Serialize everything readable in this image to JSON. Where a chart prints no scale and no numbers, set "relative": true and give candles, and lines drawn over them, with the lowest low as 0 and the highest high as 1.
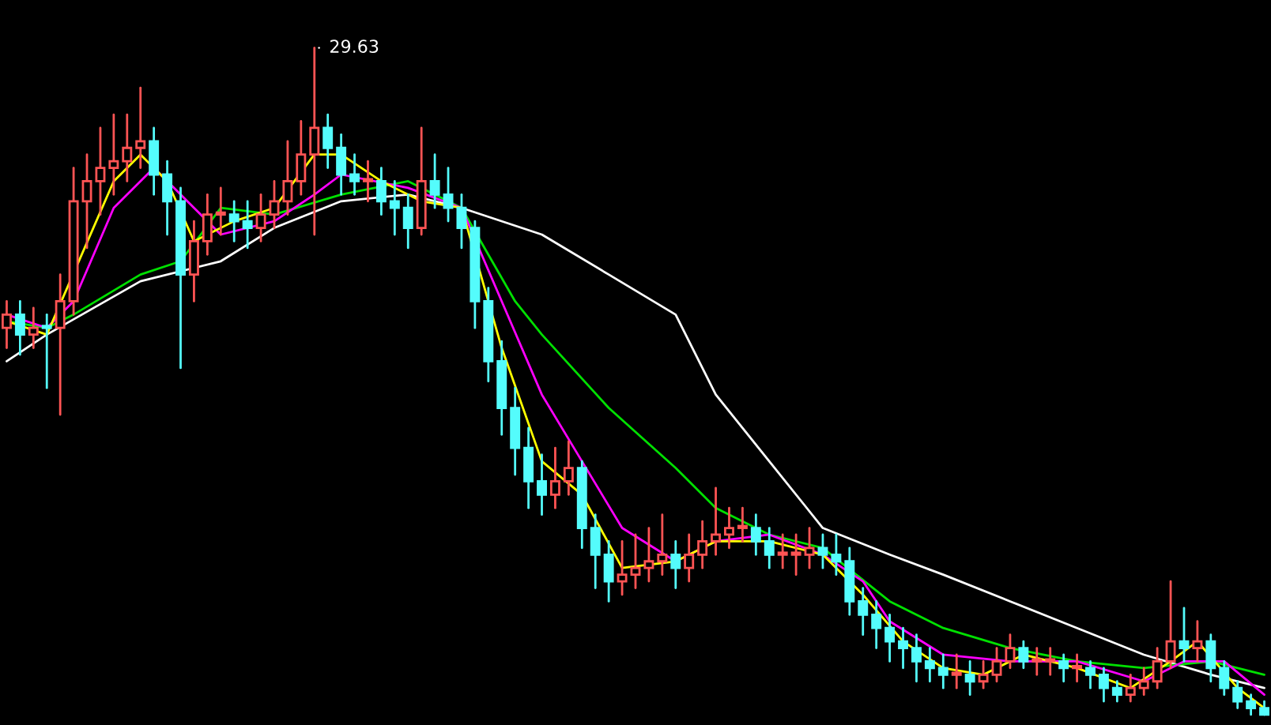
{
  "chart_data": {
    "type": "candlestick",
    "relative": true,
    "annotations": [
      "29.63"
    ],
    "categories": [
      null,
      null,
      null,
      null,
      null,
      null,
      null,
      null,
      null,
      null,
      null,
      null,
      null,
      null,
      null,
      null,
      null,
      null,
      null,
      null,
      null,
      null,
      null,
      null,
      null,
      null,
      null,
      null,
      null,
      null,
      null,
      null,
      null,
      null,
      null,
      null,
      null,
      null,
      null,
      null,
      null,
      null,
      null,
      null,
      null,
      null,
      null,
      null,
      null,
      null,
      null,
      null,
      null,
      null,
      null,
      null,
      null,
      null,
      null,
      null,
      null,
      null,
      null,
      null,
      null,
      null,
      null,
      null,
      null,
      null,
      null,
      null,
      null,
      null,
      null,
      null,
      null,
      null,
      null,
      null,
      null,
      null,
      null,
      null,
      null,
      null,
      null,
      null,
      null,
      null,
      null,
      null,
      null,
      null,
      null
    ],
    "ohlc": [
      [
        0.58,
        0.62,
        0.55,
        0.6
      ],
      [
        0.6,
        0.62,
        0.54,
        0.57
      ],
      [
        0.57,
        0.61,
        0.55,
        0.58
      ],
      [
        0.58,
        0.6,
        0.49,
        0.58
      ],
      [
        0.58,
        0.66,
        0.45,
        0.62
      ],
      [
        0.62,
        0.82,
        0.6,
        0.77
      ],
      [
        0.77,
        0.84,
        0.7,
        0.8
      ],
      [
        0.8,
        0.88,
        0.75,
        0.82
      ],
      [
        0.82,
        0.9,
        0.78,
        0.83
      ],
      [
        0.83,
        0.9,
        0.8,
        0.85
      ],
      [
        0.85,
        0.94,
        0.82,
        0.86
      ],
      [
        0.86,
        0.88,
        0.78,
        0.81
      ],
      [
        0.81,
        0.83,
        0.72,
        0.77
      ],
      [
        0.77,
        0.79,
        0.52,
        0.66
      ],
      [
        0.66,
        0.74,
        0.62,
        0.71
      ],
      [
        0.71,
        0.78,
        0.69,
        0.75
      ],
      [
        0.75,
        0.79,
        0.72,
        0.75
      ],
      [
        0.75,
        0.77,
        0.71,
        0.74
      ],
      [
        0.74,
        0.77,
        0.7,
        0.73
      ],
      [
        0.73,
        0.78,
        0.71,
        0.75
      ],
      [
        0.75,
        0.8,
        0.73,
        0.77
      ],
      [
        0.77,
        0.86,
        0.75,
        0.8
      ],
      [
        0.8,
        0.89,
        0.78,
        0.84
      ],
      [
        0.84,
        1.0,
        0.72,
        0.88
      ],
      [
        0.88,
        0.9,
        0.82,
        0.85
      ],
      [
        0.85,
        0.87,
        0.78,
        0.81
      ],
      [
        0.81,
        0.84,
        0.78,
        0.8
      ],
      [
        0.8,
        0.83,
        0.77,
        0.8
      ],
      [
        0.8,
        0.82,
        0.75,
        0.77
      ],
      [
        0.77,
        0.8,
        0.72,
        0.76
      ],
      [
        0.76,
        0.78,
        0.7,
        0.73
      ],
      [
        0.73,
        0.88,
        0.72,
        0.8
      ],
      [
        0.8,
        0.84,
        0.76,
        0.78
      ],
      [
        0.78,
        0.82,
        0.74,
        0.76
      ],
      [
        0.76,
        0.78,
        0.7,
        0.73
      ],
      [
        0.73,
        0.74,
        0.58,
        0.62
      ],
      [
        0.62,
        0.64,
        0.5,
        0.53
      ],
      [
        0.53,
        0.56,
        0.42,
        0.46
      ],
      [
        0.46,
        0.49,
        0.36,
        0.4
      ],
      [
        0.4,
        0.43,
        0.31,
        0.35
      ],
      [
        0.35,
        0.39,
        0.3,
        0.33
      ],
      [
        0.33,
        0.4,
        0.31,
        0.35
      ],
      [
        0.35,
        0.41,
        0.33,
        0.37
      ],
      [
        0.37,
        0.38,
        0.25,
        0.28
      ],
      [
        0.28,
        0.3,
        0.19,
        0.24
      ],
      [
        0.24,
        0.26,
        0.17,
        0.2
      ],
      [
        0.2,
        0.26,
        0.18,
        0.21
      ],
      [
        0.21,
        0.27,
        0.19,
        0.22
      ],
      [
        0.22,
        0.28,
        0.2,
        0.23
      ],
      [
        0.23,
        0.3,
        0.21,
        0.24
      ],
      [
        0.24,
        0.26,
        0.19,
        0.22
      ],
      [
        0.22,
        0.27,
        0.2,
        0.24
      ],
      [
        0.24,
        0.29,
        0.22,
        0.26
      ],
      [
        0.26,
        0.34,
        0.24,
        0.27
      ],
      [
        0.27,
        0.31,
        0.25,
        0.28
      ],
      [
        0.28,
        0.31,
        0.26,
        0.28
      ],
      [
        0.28,
        0.3,
        0.24,
        0.26
      ],
      [
        0.26,
        0.28,
        0.22,
        0.24
      ],
      [
        0.24,
        0.27,
        0.22,
        0.24
      ],
      [
        0.24,
        0.27,
        0.21,
        0.24
      ],
      [
        0.24,
        0.28,
        0.22,
        0.25
      ],
      [
        0.25,
        0.27,
        0.22,
        0.24
      ],
      [
        0.24,
        0.27,
        0.21,
        0.23
      ],
      [
        0.23,
        0.25,
        0.15,
        0.17
      ],
      [
        0.17,
        0.19,
        0.12,
        0.15
      ],
      [
        0.15,
        0.17,
        0.1,
        0.13
      ],
      [
        0.13,
        0.15,
        0.08,
        0.11
      ],
      [
        0.11,
        0.13,
        0.07,
        0.1
      ],
      [
        0.1,
        0.12,
        0.05,
        0.08
      ],
      [
        0.08,
        0.1,
        0.05,
        0.07
      ],
      [
        0.07,
        0.09,
        0.04,
        0.06
      ],
      [
        0.06,
        0.09,
        0.04,
        0.06
      ],
      [
        0.06,
        0.08,
        0.03,
        0.05
      ],
      [
        0.05,
        0.08,
        0.04,
        0.06
      ],
      [
        0.06,
        0.1,
        0.05,
        0.08
      ],
      [
        0.08,
        0.12,
        0.07,
        0.1
      ],
      [
        0.1,
        0.11,
        0.07,
        0.08
      ],
      [
        0.08,
        0.1,
        0.06,
        0.08
      ],
      [
        0.08,
        0.1,
        0.06,
        0.08
      ],
      [
        0.08,
        0.09,
        0.05,
        0.07
      ],
      [
        0.07,
        0.09,
        0.05,
        0.07
      ],
      [
        0.07,
        0.08,
        0.04,
        0.06
      ],
      [
        0.06,
        0.07,
        0.02,
        0.04
      ],
      [
        0.04,
        0.05,
        0.02,
        0.03
      ],
      [
        0.03,
        0.06,
        0.02,
        0.04
      ],
      [
        0.04,
        0.07,
        0.03,
        0.05
      ],
      [
        0.05,
        0.1,
        0.04,
        0.08
      ],
      [
        0.08,
        0.2,
        0.07,
        0.11
      ],
      [
        0.11,
        0.16,
        0.08,
        0.1
      ],
      [
        0.1,
        0.14,
        0.08,
        0.11
      ],
      [
        0.11,
        0.12,
        0.05,
        0.07
      ],
      [
        0.07,
        0.08,
        0.03,
        0.04
      ],
      [
        0.04,
        0.05,
        0.01,
        0.02
      ],
      [
        0.02,
        0.03,
        0.0,
        0.01
      ],
      [
        0.01,
        0.02,
        0.0,
        0.0
      ]
    ],
    "colors": [
      "#ff5454",
      "#54fcfc",
      "#ff5454",
      "#54fcfc",
      "#ff5454",
      "#ff5454",
      "#ff5454",
      "#ff5454",
      "#ff5454",
      "#ff5454",
      "#ff5454",
      "#54fcfc",
      "#54fcfc",
      "#54fcfc",
      "#ff5454",
      "#ff5454",
      "#ff5454",
      "#54fcfc",
      "#54fcfc",
      "#ff5454",
      "#ff5454",
      "#ff5454",
      "#ff5454",
      "#ff5454",
      "#54fcfc",
      "#54fcfc",
      "#54fcfc",
      "#ff5454",
      "#54fcfc",
      "#54fcfc",
      "#54fcfc",
      "#ff5454",
      "#54fcfc",
      "#54fcfc",
      "#54fcfc",
      "#54fcfc",
      "#54fcfc",
      "#54fcfc",
      "#54fcfc",
      "#54fcfc",
      "#54fcfc",
      "#ff5454",
      "#ff5454",
      "#54fcfc",
      "#54fcfc",
      "#54fcfc",
      "#ff5454",
      "#ff5454",
      "#ff5454",
      "#ff5454",
      "#54fcfc",
      "#ff5454",
      "#ff5454",
      "#ff5454",
      "#ff5454",
      "#ff5454",
      "#54fcfc",
      "#54fcfc",
      "#ff5454",
      "#ff5454",
      "#ff5454",
      "#54fcfc",
      "#54fcfc",
      "#54fcfc",
      "#54fcfc",
      "#54fcfc",
      "#54fcfc",
      "#54fcfc",
      "#54fcfc",
      "#54fcfc",
      "#54fcfc",
      "#ff5454",
      "#54fcfc",
      "#ff5454",
      "#ff5454",
      "#ff5454",
      "#54fcfc",
      "#ff5454",
      "#ff5454",
      "#54fcfc",
      "#ff5454",
      "#54fcfc",
      "#54fcfc",
      "#54fcfc",
      "#ff5454",
      "#ff5454",
      "#ff5454",
      "#ff5454",
      "#54fcfc",
      "#ff5454",
      "#54fcfc",
      "#54fcfc",
      "#54fcfc",
      "#54fcfc",
      "#54fcfc"
    ],
    "series": [
      {
        "type": "line",
        "color": "#ffffff",
        "values": [
          0.53,
          null,
          null,
          0.57,
          null,
          null,
          null,
          null,
          null,
          null,
          0.65,
          null,
          null,
          null,
          null,
          null,
          0.68,
          null,
          null,
          null,
          0.73,
          null,
          null,
          null,
          null,
          0.77,
          null,
          null,
          null,
          null,
          0.78,
          null,
          null,
          null,
          0.76,
          null,
          null,
          null,
          null,
          null,
          0.72,
          null,
          null,
          null,
          null,
          0.66,
          null,
          null,
          null,
          null,
          0.6,
          null,
          null,
          0.48,
          null,
          null,
          null,
          0.38,
          null,
          null,
          null,
          0.28,
          null,
          null,
          null,
          null,
          0.24,
          null,
          null,
          null,
          0.21,
          null,
          null,
          null,
          null,
          0.17,
          null,
          null,
          null,
          null,
          0.13,
          null,
          null,
          null,
          null,
          0.09,
          null,
          null,
          null,
          null,
          0.06,
          null,
          null,
          null,
          0.04
        ]
      },
      {
        "type": "line",
        "color": "#00e000",
        "values": [
          0.59,
          null,
          null,
          0.58,
          null,
          0.6,
          null,
          null,
          null,
          null,
          0.66,
          null,
          null,
          0.68,
          null,
          null,
          0.76,
          null,
          null,
          null,
          0.75,
          null,
          null,
          null,
          null,
          0.78,
          null,
          null,
          null,
          null,
          0.8,
          null,
          null,
          null,
          0.76,
          null,
          null,
          null,
          0.62,
          null,
          0.57,
          null,
          null,
          null,
          null,
          0.46,
          null,
          null,
          null,
          null,
          0.37,
          null,
          null,
          0.31,
          null,
          null,
          null,
          0.27,
          null,
          null,
          null,
          0.25,
          null,
          null,
          null,
          null,
          0.17,
          null,
          null,
          null,
          0.13,
          null,
          null,
          null,
          null,
          0.1,
          null,
          null,
          null,
          null,
          0.08,
          null,
          null,
          null,
          null,
          0.07,
          null,
          null,
          null,
          null,
          0.08,
          null,
          null,
          null,
          0.06
        ]
      },
      {
        "type": "line",
        "color": "#ff00ff",
        "values": [
          0.6,
          null,
          null,
          0.58,
          null,
          0.62,
          null,
          null,
          0.76,
          null,
          null,
          0.82,
          null,
          0.78,
          null,
          null,
          0.72,
          null,
          null,
          null,
          0.74,
          null,
          null,
          0.78,
          null,
          0.81,
          null,
          null,
          null,
          null,
          0.79,
          null,
          null,
          null,
          0.76,
          null,
          null,
          0.62,
          null,
          null,
          0.48,
          null,
          null,
          0.38,
          null,
          null,
          0.28,
          null,
          null,
          null,
          0.23,
          null,
          null,
          0.26,
          null,
          null,
          null,
          0.27,
          null,
          null,
          null,
          0.24,
          null,
          null,
          0.2,
          null,
          0.14,
          null,
          null,
          null,
          0.09,
          null,
          null,
          null,
          null,
          0.08,
          null,
          null,
          null,
          null,
          0.08,
          null,
          null,
          null,
          null,
          0.05,
          null,
          null,
          0.08,
          null,
          null,
          0.08,
          null,
          null,
          0.03
        ]
      },
      {
        "type": "line",
        "color": "#ffff00",
        "values": [
          0.59,
          null,
          null,
          0.57,
          null,
          null,
          null,
          null,
          0.8,
          null,
          0.84,
          null,
          0.8,
          null,
          0.71,
          null,
          null,
          0.74,
          null,
          null,
          0.76,
          null,
          null,
          0.84,
          null,
          0.84,
          null,
          null,
          0.8,
          null,
          null,
          0.77,
          null,
          null,
          0.76,
          null,
          null,
          0.55,
          null,
          null,
          0.38,
          null,
          null,
          0.33,
          null,
          null,
          0.22,
          null,
          null,
          null,
          0.23,
          null,
          null,
          0.26,
          null,
          null,
          null,
          0.26,
          null,
          null,
          null,
          0.24,
          null,
          null,
          0.18,
          null,
          null,
          0.11,
          null,
          null,
          0.07,
          null,
          null,
          0.06,
          null,
          null,
          0.09,
          null,
          null,
          null,
          0.07,
          null,
          null,
          null,
          0.04,
          null,
          null,
          0.08,
          null,
          0.11,
          null,
          null,
          0.04,
          null,
          0.01
        ]
      }
    ]
  }
}
